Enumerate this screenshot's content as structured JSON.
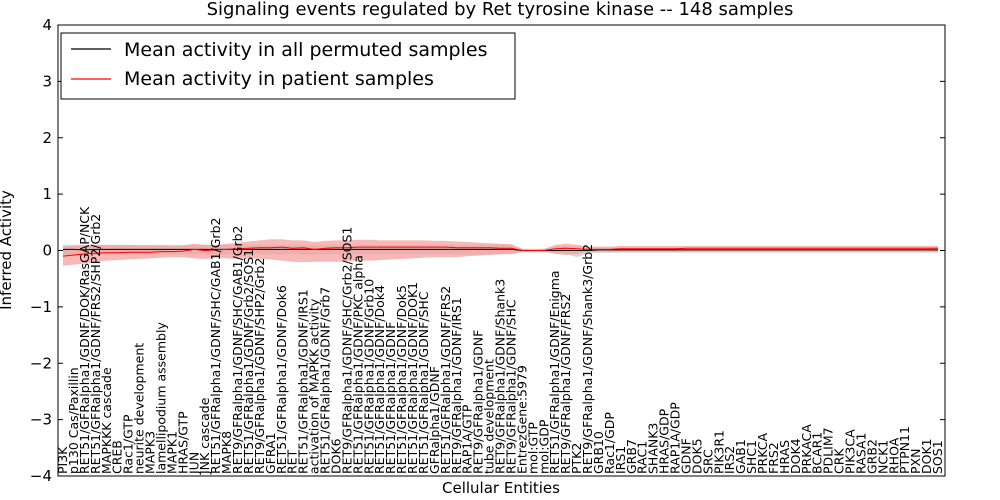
{
  "chart_data": {
    "type": "line",
    "title": "Signaling events regulated by Ret tyrosine kinase -- 148 samples",
    "xlabel": "Cellular Entities",
    "ylabel": "Inferred Activity",
    "ylim": [
      -4,
      4
    ],
    "yticks": [
      "−4",
      "−3",
      "−2",
      "−1",
      "0",
      "1",
      "2",
      "3",
      "4"
    ],
    "grid": false,
    "legend_position": "top-left",
    "legend": [
      {
        "label": "Mean activity in all permuted samples",
        "color": "#000000"
      },
      {
        "label": "Mean activity in patient samples",
        "color": "#ff0000"
      }
    ],
    "colors": {
      "patient": "#ff0000",
      "patient_band": "#f4a0a0",
      "permuted": "#000000",
      "permuted_band": "#bdbdbd"
    },
    "categories": [
      "PI3K",
      "p130 Cas/Paxillin",
      "RET51/GFRalpha1/GDNF/DOK/RasGAP/NCK",
      "RET51/GFRalpha1/GDNF/FRS2/SHP2/Grb2",
      "MAPKKK cascade",
      "CREB",
      "Rac1/GTP",
      "neurite development",
      "MAPK3",
      "lamellipodium assembly",
      "MAPK1",
      "HRAS/GTP",
      "JUN",
      "JNK cascade",
      "RET51/GFRalpha1/GDNF/SHC/GAB1/Grb2",
      "MAPK8",
      "RET9/GFRalpha1/GDNF/SHC/GAB1/Grb2",
      "RET51/GFRalpha1/GDNF/Grb2/SOS1",
      "RET9/GFRalpha1/GDNF/SHP2/Grb2",
      "GFRA1",
      "RET51/GFRalpha1/GDNF/Dok6",
      "RET",
      "RET51/GFRalpha1/GDNF/IRS1",
      "activation of MAPKK activity",
      "RET51/GFRalpha1/GDNF/Grb7",
      "DOK6",
      "RET9/GFRalpha1/GDNF/SHC/Grb2/SOS1",
      "RET51/GFRalpha1/GDNF/PKC alpha",
      "RET51/GFRalpha1/GDNF/Grb10",
      "RET51/GFRalpha1/GDNF/Dok4",
      "RET51/GFRalpha1/GDNF",
      "RET51/GFRalpha1/GDNF/Dok5",
      "RET51/GFRalpha1/GDNF/DOK1",
      "RET51/GFRalpha1/GDNF/SHC",
      "GFRalpha1/GDNF",
      "RET51/GFRalpha1/GDNF/FRS2",
      "RET9/GFRalpha1/GDNF/IRS1",
      "RAP1A/GTP",
      "RET9/GFRalpha1/GDNF",
      "tube development",
      "RET9/GFRalpha1/GDNF/Shank3",
      "RET9/GFRalpha1/GDNF/SHC",
      "EntrezGene:5979",
      "mol:GTP",
      "mol:GDP",
      "RET51/GFRalpha1/GDNF/Enigma",
      "RET9/GFRalpha1/GDNF/FRS2",
      "PTK2",
      "RET9/GFRalpha1/GDNF/Shank3/Grb2",
      "GRB10",
      "Rac1/GDP",
      "IRS1",
      "GRB7",
      "RAC1",
      "SHANK3",
      "HRAS/GDP",
      "RAP1A/GDP",
      "GDNF",
      "DOK5",
      "SRC",
      "PIK3R1",
      "IRS2",
      "GAB1",
      "SHC1",
      "PRKCA",
      "FRS2",
      "HRAS",
      "DOK4",
      "PRKACA",
      "BCAR1",
      "PDLIM7",
      "CRK",
      "PIK3CA",
      "RASA1",
      "GRB2",
      "NCK1",
      "RHOA",
      "PTPN11",
      "PXN",
      "DOK1",
      "SOS1"
    ],
    "series": [
      {
        "name": "Mean activity in all permuted samples",
        "values": [
          0.02,
          0.02,
          0.01,
          0.02,
          0.02,
          0.02,
          0.02,
          0.02,
          0.02,
          0.02,
          0.02,
          0.02,
          0.02,
          0.02,
          0.02,
          0.02,
          0.02,
          0.02,
          0.02,
          0.02,
          0.02,
          0.02,
          0.02,
          0.02,
          0.02,
          0.02,
          0.02,
          0.02,
          0.02,
          0.02,
          0.02,
          0.02,
          0.02,
          0.02,
          0.02,
          0.02,
          0.02,
          0.02,
          0.02,
          0.02,
          0.02,
          0.02,
          0.0,
          0.0,
          0.0,
          0.0,
          0.0,
          0.0,
          0.0,
          0.01,
          0.01,
          0.01,
          0.01,
          0.01,
          0.01,
          0.01,
          0.01,
          0.01,
          0.01,
          0.01,
          0.01,
          0.01,
          0.01,
          0.01,
          0.01,
          0.01,
          0.01,
          0.01,
          0.01,
          0.01,
          0.01,
          0.01,
          0.01,
          0.01,
          0.01,
          0.01,
          0.01,
          0.01,
          0.01,
          0.01,
          0.01
        ]
      },
      {
        "name": "Mean activity in patient samples",
        "values": [
          -0.1,
          -0.08,
          -0.06,
          -0.05,
          -0.04,
          -0.04,
          -0.03,
          -0.03,
          -0.03,
          -0.02,
          -0.02,
          -0.01,
          0.02,
          0.0,
          0.01,
          0.02,
          0.03,
          0.04,
          0.05,
          0.05,
          0.06,
          0.04,
          0.05,
          0.02,
          0.04,
          0.05,
          0.05,
          0.06,
          0.06,
          0.06,
          0.06,
          0.06,
          0.06,
          0.06,
          0.06,
          0.06,
          0.05,
          0.05,
          0.05,
          0.05,
          0.04,
          0.04,
          0.0,
          0.0,
          0.0,
          0.03,
          0.04,
          0.03,
          0.02,
          0.02,
          0.02,
          0.03,
          0.03,
          0.03,
          0.03,
          0.03,
          0.03,
          0.04,
          0.04,
          0.04,
          0.04,
          0.04,
          0.04,
          0.04,
          0.04,
          0.04,
          0.04,
          0.04,
          0.04,
          0.04,
          0.04,
          0.04,
          0.04,
          0.04,
          0.04,
          0.04,
          0.04,
          0.04,
          0.04,
          0.04,
          0.04
        ]
      }
    ],
    "patient_band": {
      "lower": [
        -0.27,
        -0.25,
        -0.23,
        -0.2,
        -0.18,
        -0.17,
        -0.16,
        -0.15,
        -0.14,
        -0.13,
        -0.12,
        -0.12,
        -0.14,
        -0.15,
        -0.13,
        -0.14,
        -0.15,
        -0.14,
        -0.15,
        -0.16,
        -0.18,
        -0.2,
        -0.21,
        -0.2,
        -0.2,
        -0.2,
        -0.19,
        -0.18,
        -0.18,
        -0.17,
        -0.16,
        -0.15,
        -0.14,
        -0.13,
        -0.12,
        -0.12,
        -0.12,
        -0.1,
        -0.09,
        -0.08,
        -0.07,
        -0.06,
        -0.02,
        -0.01,
        -0.02,
        -0.06,
        -0.08,
        -0.06,
        -0.03,
        -0.02,
        -0.02,
        -0.02,
        -0.02,
        -0.02,
        -0.02,
        -0.02,
        -0.02,
        -0.02,
        -0.02,
        -0.02,
        -0.02,
        -0.02,
        -0.02,
        -0.02,
        -0.02,
        -0.02,
        -0.02,
        -0.02,
        -0.02,
        -0.02,
        -0.02,
        -0.02,
        -0.02,
        -0.02,
        -0.02,
        -0.02,
        -0.02,
        -0.02,
        -0.02,
        -0.02,
        -0.02
      ],
      "upper": [
        0.07,
        0.08,
        0.09,
        0.1,
        0.1,
        0.1,
        0.1,
        0.09,
        0.09,
        0.09,
        0.08,
        0.09,
        0.12,
        0.1,
        0.1,
        0.12,
        0.14,
        0.16,
        0.18,
        0.2,
        0.2,
        0.18,
        0.18,
        0.15,
        0.17,
        0.18,
        0.18,
        0.19,
        0.19,
        0.18,
        0.18,
        0.18,
        0.18,
        0.18,
        0.17,
        0.17,
        0.16,
        0.15,
        0.14,
        0.13,
        0.12,
        0.11,
        0.03,
        0.02,
        0.03,
        0.1,
        0.12,
        0.1,
        0.07,
        0.07,
        0.07,
        0.08,
        0.08,
        0.08,
        0.08,
        0.08,
        0.08,
        0.08,
        0.08,
        0.08,
        0.08,
        0.08,
        0.08,
        0.08,
        0.08,
        0.08,
        0.08,
        0.08,
        0.08,
        0.08,
        0.08,
        0.08,
        0.08,
        0.08,
        0.08,
        0.08,
        0.08,
        0.08,
        0.08,
        0.08,
        0.08
      ]
    },
    "permuted_band": {
      "lower": [
        -0.07,
        -0.07,
        -0.07,
        -0.07,
        -0.07,
        -0.07,
        -0.07,
        -0.07,
        -0.07,
        -0.07,
        -0.07,
        -0.07,
        -0.07,
        -0.07,
        -0.07,
        -0.07,
        -0.07,
        -0.07,
        -0.07,
        -0.07,
        -0.07,
        -0.07,
        -0.07,
        -0.07,
        -0.07,
        -0.07,
        -0.07,
        -0.07,
        -0.07,
        -0.07,
        -0.07,
        -0.07,
        -0.07,
        -0.07,
        -0.07,
        -0.07,
        -0.07,
        -0.07,
        -0.07,
        -0.07,
        -0.07,
        -0.07,
        -0.03,
        -0.03,
        -0.03,
        -0.05,
        -0.06,
        -0.12,
        -0.05,
        -0.04,
        -0.04,
        -0.04,
        -0.04,
        -0.04,
        -0.04,
        -0.04,
        -0.04,
        -0.04,
        -0.04,
        -0.04,
        -0.04,
        -0.04,
        -0.04,
        -0.04,
        -0.04,
        -0.04,
        -0.04,
        -0.04,
        -0.04,
        -0.04,
        -0.04,
        -0.04,
        -0.04,
        -0.04,
        -0.04,
        -0.04,
        -0.04,
        -0.04,
        -0.04,
        -0.04,
        -0.04
      ],
      "upper": [
        0.1,
        0.1,
        0.1,
        0.1,
        0.1,
        0.1,
        0.1,
        0.1,
        0.1,
        0.1,
        0.1,
        0.1,
        0.1,
        0.1,
        0.1,
        0.1,
        0.1,
        0.1,
        0.1,
        0.1,
        0.1,
        0.1,
        0.1,
        0.1,
        0.1,
        0.1,
        0.1,
        0.1,
        0.1,
        0.1,
        0.1,
        0.1,
        0.1,
        0.1,
        0.1,
        0.1,
        0.1,
        0.1,
        0.1,
        0.1,
        0.1,
        0.1,
        0.03,
        0.03,
        0.03,
        0.06,
        0.08,
        0.06,
        0.05,
        0.05,
        0.05,
        0.05,
        0.05,
        0.05,
        0.05,
        0.05,
        0.05,
        0.05,
        0.05,
        0.05,
        0.05,
        0.05,
        0.05,
        0.05,
        0.05,
        0.05,
        0.05,
        0.05,
        0.05,
        0.05,
        0.05,
        0.05,
        0.05,
        0.05,
        0.05,
        0.05,
        0.05,
        0.05,
        0.05,
        0.05,
        0.05
      ]
    }
  }
}
